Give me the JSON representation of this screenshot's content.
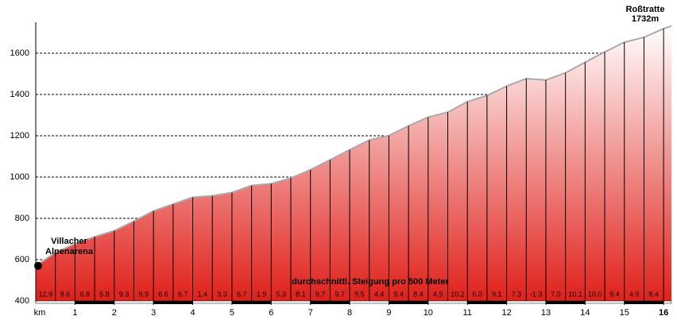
{
  "chart_data": {
    "type": "area",
    "x": [
      0,
      0.5,
      1,
      1.5,
      2,
      2.5,
      3,
      3.5,
      4,
      4.5,
      5,
      5.5,
      6,
      6.5,
      7,
      7.5,
      8,
      8.5,
      9,
      9.5,
      10,
      10.5,
      11,
      11.5,
      12,
      12.5,
      13,
      13.5,
      14,
      14.5,
      15,
      15.5,
      16,
      16.2
    ],
    "values": [
      570,
      634,
      677,
      711,
      740,
      786,
      836,
      869,
      902,
      909,
      925,
      959,
      968,
      995,
      1035,
      1083,
      1132,
      1179,
      1201,
      1248,
      1290,
      1314,
      1365,
      1395,
      1440,
      1477,
      1470,
      1505,
      1556,
      1606,
      1653,
      1677,
      1719,
      1732
    ],
    "gradients": [
      12.9,
      8.6,
      6.8,
      5.8,
      9.3,
      9.9,
      6.6,
      6.7,
      1.4,
      3.3,
      6.7,
      1.9,
      5.3,
      8.1,
      9.7,
      9.7,
      9.5,
      4.4,
      9.4,
      8.4,
      4.9,
      10.2,
      6.0,
      9.1,
      7.3,
      -1.3,
      7.0,
      10.1,
      10.0,
      9.4,
      4.9,
      8.4
    ],
    "gradient_labels": [
      "12.9",
      "8.6",
      "6.8",
      "5.8",
      "9.3",
      "9.9",
      "6.6",
      "6.7",
      "1.4",
      "3.3",
      "6.7",
      "1.9",
      "5.3",
      "8.1",
      "9.7",
      "9.7",
      "9.5",
      "4.4",
      "9.4",
      "8.4",
      "4.9",
      "10.2",
      "6.0",
      "9.1",
      "7.3",
      "-1.3",
      "7.0",
      "10.1",
      "10.0",
      "9.4",
      "4.9",
      "8.4"
    ],
    "gradient_caption": "durchschnittl. Steigung pro 500 Meter",
    "start_label": [
      "Villacher",
      "Alpenarena"
    ],
    "end_label": [
      "Roßtratte",
      "1732m"
    ],
    "x_unit": "km",
    "xlim": [
      0,
      16.2
    ],
    "xticks": [
      1,
      2,
      3,
      4,
      5,
      6,
      7,
      8,
      9,
      10,
      11,
      12,
      13,
      14,
      15,
      16
    ],
    "ylim": [
      400,
      1750
    ],
    "yticks": [
      400,
      600,
      800,
      1000,
      1200,
      1400,
      1600
    ],
    "grid": true,
    "color": "#e0201a"
  }
}
